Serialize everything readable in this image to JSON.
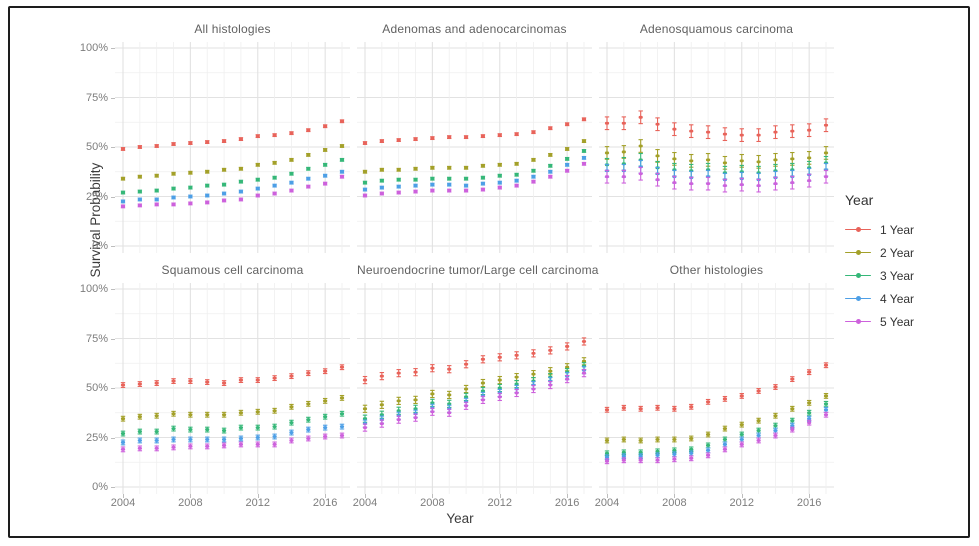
{
  "figure": {
    "y_axis_title": "Survival Probability",
    "x_axis_title": "Year",
    "border_color": "#1d1d1d"
  },
  "chart_data": {
    "type": "scatter",
    "subtype": "pointrange-errorbar-facets",
    "xlabel": "Year",
    "ylabel": "Survival Probability",
    "x": [
      2004,
      2005,
      2006,
      2007,
      2008,
      2009,
      2010,
      2011,
      2012,
      2013,
      2014,
      2015,
      2016,
      2017
    ],
    "x_tick_years": [
      2004,
      2008,
      2012,
      2016
    ],
    "x_tick_labels": [
      "2004",
      "2008",
      "2012",
      "2016"
    ],
    "y_tick_values": [
      100,
      75,
      50,
      25,
      0
    ],
    "y_tick_labels": [
      "100%",
      "75%",
      "50%",
      "25%",
      "0%"
    ],
    "ylim": [
      0,
      100
    ],
    "grid": {
      "major_color": "#e2e2e2",
      "minor_color": "#efefef",
      "background": "#ffffff"
    },
    "legend": {
      "title": "Year",
      "position": "right",
      "entries": [
        {
          "label": "1 Year",
          "color": "#E8635A"
        },
        {
          "label": "2 Year",
          "color": "#A3A029"
        },
        {
          "label": "3 Year",
          "color": "#35B778"
        },
        {
          "label": "4 Year",
          "color": "#4D9FE6"
        },
        {
          "label": "5 Year",
          "color": "#CD61DC"
        }
      ]
    },
    "panels": [
      {
        "title": "All histologies",
        "row": 0,
        "col": 0,
        "error": 0.7,
        "series": [
          {
            "name": "1 Year",
            "values": [
              49,
              50,
              50.5,
              51.5,
              52,
              52.5,
              53,
              54,
              55.5,
              56,
              57,
              58.5,
              60.5,
              63
            ]
          },
          {
            "name": "2 Year",
            "values": [
              34,
              35,
              35.5,
              36.5,
              37,
              37.5,
              38.5,
              39,
              41,
              42,
              43.5,
              46,
              48.5,
              50.5
            ]
          },
          {
            "name": "3 Year",
            "values": [
              27,
              27.5,
              28,
              29,
              29.5,
              30.5,
              31,
              32.5,
              33.5,
              34.5,
              36.5,
              39,
              41,
              43.5
            ]
          },
          {
            "name": "4 Year",
            "values": [
              22.5,
              23.5,
              23.5,
              24.5,
              25,
              25.5,
              26.5,
              27.5,
              29,
              30.5,
              32,
              34,
              35.5,
              37.5
            ]
          },
          {
            "name": "5 Year",
            "values": [
              20,
              20.5,
              21,
              21,
              21.5,
              22,
              23,
              23.5,
              25.5,
              26.5,
              28,
              30,
              31.5,
              35
            ]
          }
        ]
      },
      {
        "title": "Adenomas and adenocarcinomas",
        "row": 0,
        "col": 1,
        "error": 0.7,
        "series": [
          {
            "name": "1 Year",
            "values": [
              52,
              53,
              53.5,
              54,
              54.5,
              55,
              55,
              55.5,
              56,
              56.5,
              57.5,
              59.5,
              61.5,
              64
            ]
          },
          {
            "name": "2 Year",
            "values": [
              37.5,
              38.5,
              38.5,
              39,
              39.5,
              39.5,
              39.5,
              40.5,
              41,
              41.5,
              43.5,
              46,
              49,
              53
            ]
          },
          {
            "name": "3 Year",
            "values": [
              32,
              33,
              33.5,
              33.5,
              34,
              34,
              34,
              34.5,
              35.5,
              36,
              38,
              40.5,
              44,
              48
            ]
          },
          {
            "name": "4 Year",
            "values": [
              28.5,
              29.5,
              30,
              30.5,
              31,
              31,
              30.5,
              31.5,
              32,
              33,
              35,
              37.5,
              41,
              44.5
            ]
          },
          {
            "name": "5 Year",
            "values": [
              25.5,
              26.5,
              27,
              27.5,
              28,
              28,
              28,
              28.5,
              29.5,
              30.5,
              32.5,
              35,
              38,
              41.5
            ]
          }
        ]
      },
      {
        "title": "Adenosquamous carcinoma",
        "row": 0,
        "col": 2,
        "error": 3.2,
        "series": [
          {
            "name": "1 Year",
            "values": [
              62,
              62,
              65,
              61.5,
              59,
              58,
              57.5,
              56.5,
              56,
              56,
              57.5,
              58,
              58.5,
              61
            ]
          },
          {
            "name": "2 Year",
            "values": [
              47,
              47.5,
              50.5,
              45.5,
              44,
              43,
              43.5,
              42,
              43,
              42.5,
              43.5,
              44,
              44.5,
              47
            ]
          },
          {
            "name": "3 Year",
            "values": [
              41,
              41.5,
              43.5,
              39.5,
              38.5,
              38,
              38.5,
              37,
              37.5,
              37,
              38,
              38.5,
              39.5,
              42
            ]
          },
          {
            "name": "4 Year",
            "values": [
              38,
              38,
              40,
              36.5,
              35,
              34.5,
              35,
              33.5,
              34,
              33.5,
              34.5,
              35,
              36,
              38.5
            ]
          },
          {
            "name": "5 Year",
            "values": [
              35,
              35,
              36.5,
              33.5,
              32,
              31.5,
              31.5,
              30.5,
              31,
              30.5,
              31.5,
              32,
              33,
              35
            ]
          }
        ]
      },
      {
        "title": "Squamous cell carcinoma",
        "row": 1,
        "col": 0,
        "error": 1.2,
        "series": [
          {
            "name": "1 Year",
            "values": [
              51.5,
              52,
              52.5,
              53.5,
              53.5,
              53,
              52.5,
              54,
              54,
              55,
              56,
              57.5,
              58.5,
              60.5
            ]
          },
          {
            "name": "2 Year",
            "values": [
              34.5,
              35.5,
              36,
              37,
              36.5,
              36.5,
              36.5,
              37.5,
              38,
              38.5,
              40.5,
              42,
              43.5,
              45
            ]
          },
          {
            "name": "3 Year",
            "values": [
              27,
              28,
              28,
              29.5,
              29,
              29,
              28.5,
              30,
              30,
              30.5,
              32.5,
              34,
              35.5,
              37
            ]
          },
          {
            "name": "4 Year",
            "values": [
              22.5,
              23.5,
              23.5,
              24,
              24,
              24,
              24,
              24.5,
              25,
              25.5,
              27.5,
              29,
              30,
              30.5
            ]
          },
          {
            "name": "5 Year",
            "values": [
              19,
              19.5,
              19.5,
              20,
              20.5,
              20.5,
              21,
              21.5,
              21.5,
              21.5,
              23.5,
              24.5,
              25.5,
              26
            ]
          }
        ]
      },
      {
        "title": "Neuroendocrine tumor/Large cell carcinoma",
        "row": 1,
        "col": 1,
        "error": 1.8,
        "series": [
          {
            "name": "1 Year",
            "values": [
              54,
              56,
              57.5,
              58,
              60,
              59.5,
              62,
              64.5,
              65.5,
              66.5,
              67.5,
              69,
              71,
              73.5
            ]
          },
          {
            "name": "2 Year",
            "values": [
              39.5,
              41.5,
              43.5,
              44,
              47,
              46.5,
              49.5,
              52.5,
              54,
              55.5,
              57,
              58.5,
              60.5,
              63.5
            ]
          },
          {
            "name": "3 Year",
            "values": [
              34.5,
              36.5,
              38.5,
              39.5,
              42.5,
              42,
              45.5,
              48.5,
              50,
              52,
              53.5,
              55.5,
              58,
              61
            ]
          },
          {
            "name": "4 Year",
            "values": [
              32,
              34,
              36,
              37,
              40,
              39.5,
              43,
              46,
              47.5,
              49.5,
              51.5,
              53.5,
              56,
              59
            ]
          },
          {
            "name": "5 Year",
            "values": [
              30,
              32,
              34,
              35,
              38,
              37.5,
              41,
              44,
              45.5,
              47.5,
              49.5,
              51.5,
              54.5,
              57.5
            ]
          }
        ]
      },
      {
        "title": "Other histologies",
        "row": 1,
        "col": 2,
        "error": 1.2,
        "series": [
          {
            "name": "1 Year",
            "values": [
              39,
              40,
              39.5,
              40,
              39.5,
              40.5,
              43,
              44.5,
              46,
              48.5,
              50.5,
              54.5,
              58,
              61.5
            ]
          },
          {
            "name": "2 Year",
            "values": [
              23.5,
              24,
              23.5,
              24,
              24,
              24.5,
              26.5,
              29.5,
              31.5,
              33.5,
              36,
              39.5,
              42.5,
              46
            ]
          },
          {
            "name": "3 Year",
            "values": [
              17,
              17.5,
              17.5,
              18,
              18.5,
              19,
              21,
              24,
              26.5,
              28.5,
              31,
              33.5,
              37.5,
              42
            ]
          },
          {
            "name": "4 Year",
            "values": [
              15,
              15.5,
              15.5,
              16,
              16.5,
              17,
              18.5,
              21.5,
              24,
              26,
              28.5,
              31,
              34.5,
              39
            ]
          },
          {
            "name": "5 Year",
            "values": [
              13,
              13.5,
              13.5,
              13.5,
              14,
              14.5,
              16,
              19,
              21.5,
              23.5,
              26,
              29,
              32.5,
              36.5
            ]
          }
        ]
      }
    ]
  }
}
